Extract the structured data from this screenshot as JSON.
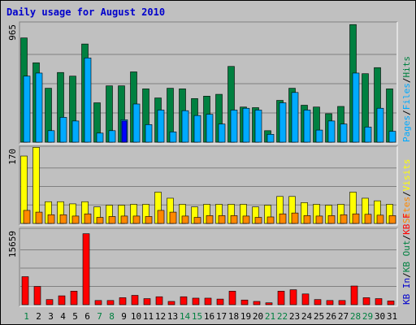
{
  "chart_data": {
    "type": "bar",
    "title": "Daily usage for August 2010",
    "days": [
      "1",
      "2",
      "3",
      "4",
      "5",
      "6",
      "7",
      "8",
      "9",
      "10",
      "11",
      "12",
      "13",
      "14",
      "15",
      "16",
      "17",
      "18",
      "19",
      "20",
      "21",
      "22",
      "23",
      "24",
      "25",
      "26",
      "27",
      "28",
      "29",
      "30",
      "31"
    ],
    "weekend_days": [
      "1",
      "7",
      "8",
      "14",
      "15",
      "21",
      "22",
      "28",
      "29"
    ],
    "colors": {
      "title": "#0000cc",
      "plot_bg": "#c0c0c0",
      "weekday_label": "#000000",
      "weekend_label": "#008040",
      "hits": "#008040",
      "files": "#00aaff",
      "pages": "#0000ff",
      "visits": "#ffff00",
      "sites": "#ff8800",
      "kbin": "#0000cc",
      "kbout": "#008040",
      "kbf": "#ff0000"
    },
    "panels": [
      {
        "max_label": "965",
        "ymax": 965,
        "series": [
          {
            "name": "Hits",
            "key": "hits",
            "values": [
              860,
              655,
              445,
              575,
              545,
              810,
              325,
              465,
              465,
              580,
              440,
              365,
              445,
              440,
              360,
              380,
              395,
              625,
              290,
              285,
              95,
              345,
              445,
              305,
              290,
              235,
              295,
              970,
              565,
              615,
              440
            ]
          },
          {
            "name": "Files",
            "key": "files",
            "values": [
              545,
              570,
              95,
              205,
              175,
              695,
              75,
              95,
              185,
              315,
              145,
              265,
              85,
              260,
              220,
              230,
              150,
              265,
              280,
              265,
              65,
              325,
              410,
              265,
              100,
              175,
              150,
              570,
              125,
              280,
              90
            ]
          },
          {
            "name": "Pages",
            "key": "pages",
            "values": [
              0,
              0,
              0,
              0,
              0,
              0,
              0,
              0,
              175,
              0,
              0,
              0,
              0,
              0,
              0,
              0,
              0,
              0,
              0,
              0,
              0,
              0,
              0,
              0,
              0,
              0,
              0,
              0,
              0,
              0,
              0
            ]
          }
        ],
        "legend": [
          {
            "text": "Hits",
            "key": "hits"
          },
          {
            "text": "/",
            "key": "sep"
          },
          {
            "text": "Files",
            "key": "files"
          },
          {
            "text": "/",
            "key": "sep"
          },
          {
            "text": "Pages",
            "key": "files"
          }
        ]
      },
      {
        "max_label": "170",
        "ymax": 170,
        "series": [
          {
            "name": "Visits",
            "key": "visits",
            "values": [
              155,
              175,
              50,
              50,
              45,
              50,
              38,
              42,
              42,
              44,
              44,
              72,
              58,
              44,
              38,
              44,
              44,
              44,
              44,
              38,
              42,
              62,
              62,
              48,
              44,
              42,
              44,
              72,
              58,
              52,
              44
            ]
          },
          {
            "name": "Sites",
            "key": "sites",
            "values": [
              30,
              26,
              20,
              20,
              17,
              22,
              14,
              16,
              17,
              17,
              16,
              30,
              26,
              17,
              14,
              18,
              18,
              18,
              17,
              14,
              15,
              22,
              24,
              18,
              17,
              18,
              20,
              22,
              21,
              19,
              18
            ]
          }
        ],
        "legend": [
          {
            "text": "Visits",
            "key": "visits"
          },
          {
            "text": "/",
            "key": "sep"
          },
          {
            "text": "Sites",
            "key": "sites"
          }
        ]
      },
      {
        "max_label": "15659",
        "ymax": 15659,
        "series": [
          {
            "name": "KB F",
            "key": "kbf",
            "values": [
              6000,
              3900,
              1100,
              1900,
              2900,
              15200,
              900,
              900,
              1500,
              2000,
              1300,
              1700,
              700,
              1700,
              1400,
              1400,
              1200,
              2900,
              1000,
              700,
              400,
              2900,
              3200,
              2300,
              1100,
              900,
              900,
              4000,
              1500,
              1300,
              800
            ]
          }
        ],
        "legend": [
          {
            "text": "KB F",
            "key": "kbf"
          },
          {
            "text": "/",
            "key": "sep"
          },
          {
            "text": "KB Out",
            "key": "kbout"
          },
          {
            "text": "/",
            "key": "sep"
          },
          {
            "text": "KB In",
            "key": "kbin"
          }
        ]
      }
    ]
  }
}
